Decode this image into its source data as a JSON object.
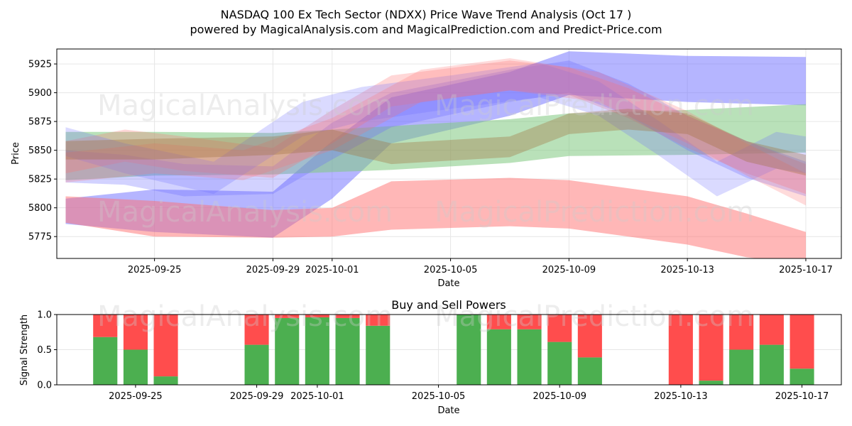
{
  "header": {
    "title_line1": "NASDAQ 100 Ex Tech Sector (NDXX) Price Wave Trend Analysis (Oct 17 )",
    "title_line2": "powered by MagicalAnalysis.com and MagicalPrediction.com and Predict-Price.com"
  },
  "watermarks": {
    "left": "MagicalAnalysis.com",
    "right": "MagicalPrediction.com"
  },
  "colors": {
    "blue": "#6b6bff",
    "red": "#ff7070",
    "green": "#7fc97f",
    "buy": "#4caf50",
    "sell": "#ff4d4d"
  },
  "chart_data": [
    {
      "type": "area",
      "title": "",
      "xlabel": "Date",
      "ylabel": "Price",
      "ylim": [
        5756,
        5938
      ],
      "xlim": [
        "2025-09-21.7",
        "2025-10-18.2"
      ],
      "grid": true,
      "x_ticks": [
        "2025-09-25",
        "2025-09-29",
        "2025-10-01",
        "2025-10-05",
        "2025-10-09",
        "2025-10-13",
        "2025-10-17"
      ],
      "y_ticks": [
        5775,
        5800,
        5825,
        5850,
        5875,
        5900,
        5925
      ],
      "bands": [
        {
          "color": "blue",
          "opacity": 0.5,
          "x": [
            "2025-09-22",
            "2025-09-25",
            "2025-09-29",
            "2025-10-01",
            "2025-10-03",
            "2025-10-07",
            "2025-10-09",
            "2025-10-13",
            "2025-10-17"
          ],
          "upper": [
            5808,
            5816,
            5814,
            5858,
            5896,
            5918,
            5936,
            5932,
            5931
          ],
          "lower": [
            5786,
            5779,
            5774,
            5808,
            5856,
            5880,
            5898,
            5892,
            5889
          ]
        },
        {
          "color": "red",
          "opacity": 0.5,
          "x": [
            "2025-09-22",
            "2025-09-25",
            "2025-09-29",
            "2025-10-01",
            "2025-10-03",
            "2025-10-07",
            "2025-10-09",
            "2025-10-13",
            "2025-10-15",
            "2025-10-17"
          ],
          "upper": [
            5810,
            5806,
            5798,
            5800,
            5823,
            5826,
            5824,
            5810,
            5795,
            5779
          ],
          "lower": [
            5787,
            5775,
            5774,
            5775,
            5781,
            5784,
            5782,
            5768,
            5757,
            5752
          ]
        },
        {
          "color": "green",
          "opacity": 0.55,
          "x": [
            "2025-09-22",
            "2025-09-25",
            "2025-09-29",
            "2025-10-01",
            "2025-10-03",
            "2025-10-07",
            "2025-10-09",
            "2025-10-13",
            "2025-10-17"
          ],
          "upper": [
            5866,
            5866,
            5865,
            5868,
            5871,
            5877,
            5882,
            5885,
            5890
          ],
          "lower": [
            5824,
            5828,
            5829,
            5831,
            5833,
            5839,
            5845,
            5846,
            5848
          ]
        },
        {
          "color": "blue",
          "opacity": 0.3,
          "x": [
            "2025-09-22",
            "2025-09-24",
            "2025-09-26",
            "2025-09-29",
            "2025-10-01",
            "2025-10-03",
            "2025-10-07",
            "2025-10-09",
            "2025-10-11",
            "2025-10-13",
            "2025-10-15",
            "2025-10-17"
          ],
          "upper": [
            5850,
            5846,
            5838,
            5836,
            5874,
            5900,
            5920,
            5928,
            5908,
            5880,
            5858,
            5840
          ],
          "lower": [
            5822,
            5820,
            5810,
            5812,
            5842,
            5870,
            5892,
            5900,
            5880,
            5850,
            5826,
            5810
          ]
        },
        {
          "color": "red",
          "opacity": 0.28,
          "x": [
            "2025-09-22",
            "2025-09-24",
            "2025-09-26",
            "2025-09-29",
            "2025-10-01",
            "2025-10-03",
            "2025-10-07",
            "2025-10-09",
            "2025-10-11",
            "2025-10-13",
            "2025-10-15",
            "2025-10-17"
          ],
          "upper": [
            5858,
            5868,
            5862,
            5852,
            5885,
            5915,
            5928,
            5922,
            5904,
            5880,
            5858,
            5838
          ],
          "lower": [
            5830,
            5840,
            5832,
            5826,
            5856,
            5888,
            5902,
            5898,
            5878,
            5852,
            5830,
            5812
          ]
        },
        {
          "color": "blue",
          "opacity": 0.25,
          "x": [
            "2025-09-22",
            "2025-09-24",
            "2025-09-27",
            "2025-09-30",
            "2025-10-02",
            "2025-10-05",
            "2025-10-08",
            "2025-10-10",
            "2025-10-12",
            "2025-10-14",
            "2025-10-16",
            "2025-10-17"
          ],
          "upper": [
            5870,
            5856,
            5840,
            5892,
            5905,
            5915,
            5926,
            5910,
            5876,
            5840,
            5866,
            5862
          ],
          "lower": [
            5845,
            5830,
            5812,
            5862,
            5875,
            5886,
            5896,
            5880,
            5846,
            5810,
            5834,
            5830
          ]
        },
        {
          "color": "red",
          "opacity": 0.25,
          "x": [
            "2025-09-22",
            "2025-09-25",
            "2025-09-28",
            "2025-10-01",
            "2025-10-04",
            "2025-10-07",
            "2025-10-10",
            "2025-10-13",
            "2025-10-15",
            "2025-10-17"
          ],
          "upper": [
            5848,
            5856,
            5850,
            5878,
            5920,
            5930,
            5918,
            5884,
            5856,
            5830
          ],
          "lower": [
            5822,
            5830,
            5824,
            5850,
            5892,
            5902,
            5892,
            5856,
            5828,
            5802
          ]
        },
        {
          "color": "brown",
          "opacity": 0.35,
          "x": [
            "2025-09-22",
            "2025-09-25",
            "2025-09-29",
            "2025-10-01",
            "2025-10-03",
            "2025-10-07",
            "2025-10-09",
            "2025-10-11",
            "2025-10-13",
            "2025-10-15",
            "2025-10-17"
          ],
          "upper": [
            5858,
            5860,
            5862,
            5868,
            5856,
            5862,
            5882,
            5886,
            5882,
            5858,
            5846
          ],
          "lower": [
            5842,
            5842,
            5846,
            5850,
            5838,
            5844,
            5864,
            5868,
            5864,
            5840,
            5828
          ]
        }
      ]
    },
    {
      "type": "bar",
      "title": "Buy and Sell Powers",
      "xlabel": "Date",
      "ylabel": "Signal Strength",
      "ylim": [
        0,
        1
      ],
      "y_ticks": [
        "0.0",
        "0.5",
        "1.0"
      ],
      "x_ticks": [
        "2025-09-25",
        "2025-09-29",
        "2025-10-01",
        "2025-10-05",
        "2025-10-09",
        "2025-10-13",
        "2025-10-17"
      ],
      "categories": [
        "2025-09-24",
        "2025-09-25",
        "2025-09-26",
        "2025-09-29",
        "2025-09-30",
        "2025-10-01",
        "2025-10-02",
        "2025-10-03",
        "2025-10-06",
        "2025-10-07",
        "2025-10-08",
        "2025-10-09",
        "2025-10-10",
        "2025-10-13",
        "2025-10-14",
        "2025-10-15",
        "2025-10-16",
        "2025-10-17"
      ],
      "series": [
        {
          "name": "Buy",
          "values": [
            0.68,
            0.5,
            0.12,
            0.57,
            0.95,
            0.96,
            0.95,
            0.84,
            1.0,
            0.79,
            0.79,
            0.61,
            0.39,
            0.0,
            0.06,
            0.5,
            0.57,
            0.23
          ]
        },
        {
          "name": "Sell",
          "values": [
            0.32,
            0.5,
            0.88,
            0.43,
            0.05,
            0.04,
            0.05,
            0.16,
            0.0,
            0.21,
            0.21,
            0.39,
            0.61,
            1.0,
            0.94,
            0.5,
            0.43,
            0.77
          ]
        }
      ]
    }
  ]
}
